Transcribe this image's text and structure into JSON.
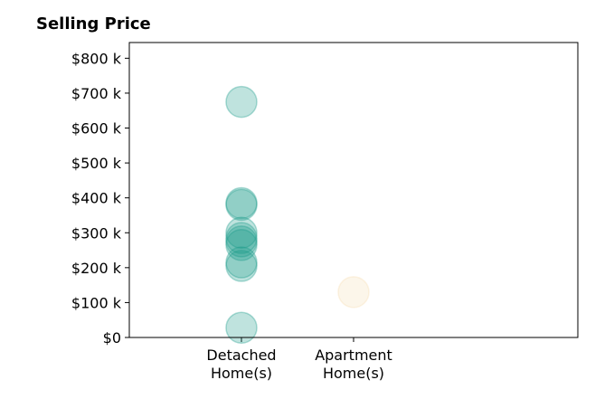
{
  "chart_data": {
    "type": "scatter",
    "title": "Selling Price",
    "xlabel": "",
    "ylabel": "",
    "categories": [
      "Detached\nHome(s)",
      "Apartment\nHome(s)"
    ],
    "ylim": [
      0,
      845000
    ],
    "y_ticks": [
      0,
      100000,
      200000,
      300000,
      400000,
      500000,
      600000,
      700000,
      800000
    ],
    "y_tick_labels": [
      "$0",
      "$100 k",
      "$200 k",
      "$300 k",
      "$400 k",
      "$500 k",
      "$600 k",
      "$700 k",
      "$800 k"
    ],
    "grid": false,
    "series": [
      {
        "category": "Detached\nHome(s)",
        "color": "#1a9a8a",
        "values": [
          675000,
          385000,
          380000,
          300000,
          285000,
          275000,
          265000,
          215000,
          205000,
          28000
        ]
      },
      {
        "category": "Apartment\nHome(s)",
        "color": "#f5deb3",
        "values": [
          130000
        ]
      }
    ]
  }
}
